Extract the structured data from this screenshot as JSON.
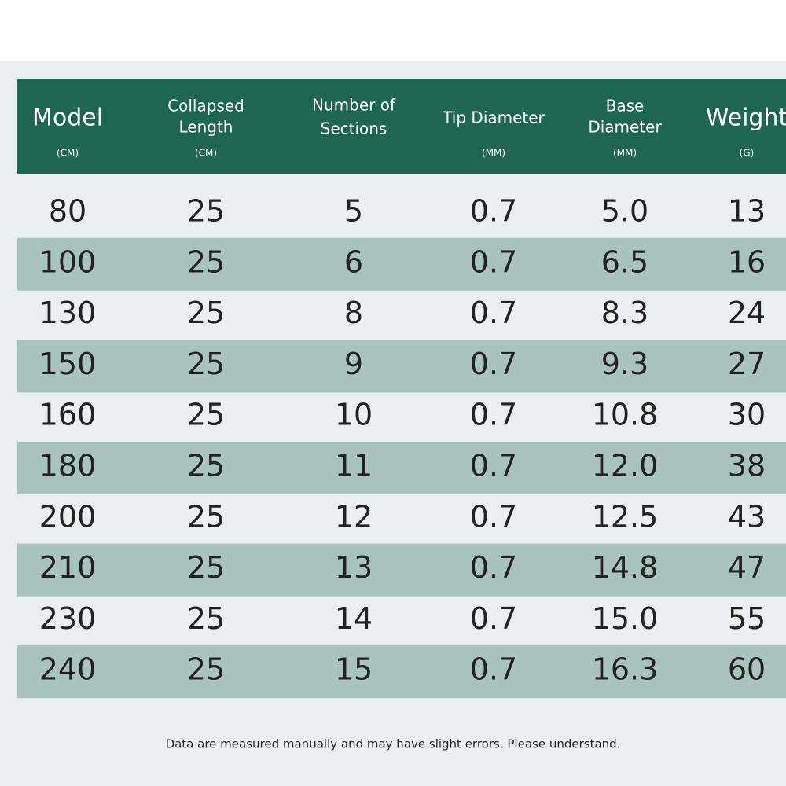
{
  "table": {
    "headers": [
      {
        "lines": [
          "Model"
        ],
        "unit": "(CM)"
      },
      {
        "lines": [
          "Collapsed",
          "Length"
        ],
        "unit": "(CM)"
      },
      {
        "lines": [
          "Number of",
          "Sections"
        ]
      },
      {
        "lines": [
          "Tip Diameter"
        ],
        "unit": "(MM)"
      },
      {
        "lines": [
          "Base",
          "Diameter"
        ],
        "unit": "(MM)"
      },
      {
        "lines": [
          "Weight"
        ],
        "unit": "(G)"
      }
    ],
    "rows": [
      [
        "80",
        "25",
        "5",
        "0.7",
        "5.0",
        "13"
      ],
      [
        "100",
        "25",
        "6",
        "0.7",
        "6.5",
        "16"
      ],
      [
        "130",
        "25",
        "8",
        "0.7",
        "8.3",
        "24"
      ],
      [
        "150",
        "25",
        "9",
        "0.7",
        "9.3",
        "27"
      ],
      [
        "160",
        "25",
        "10",
        "0.7",
        "10.8",
        "30"
      ],
      [
        "180",
        "25",
        "11",
        "0.7",
        "12.0",
        "38"
      ],
      [
        "200",
        "25",
        "12",
        "0.7",
        "12.5",
        "43"
      ],
      [
        "210",
        "25",
        "13",
        "0.7",
        "14.8",
        "47"
      ],
      [
        "230",
        "25",
        "14",
        "0.7",
        "15.0",
        "55"
      ],
      [
        "240",
        "25",
        "15",
        "0.7",
        "16.3",
        "60"
      ]
    ]
  },
  "footer": {
    "note": "Data are measured manually and may have slight errors. Please understand."
  }
}
